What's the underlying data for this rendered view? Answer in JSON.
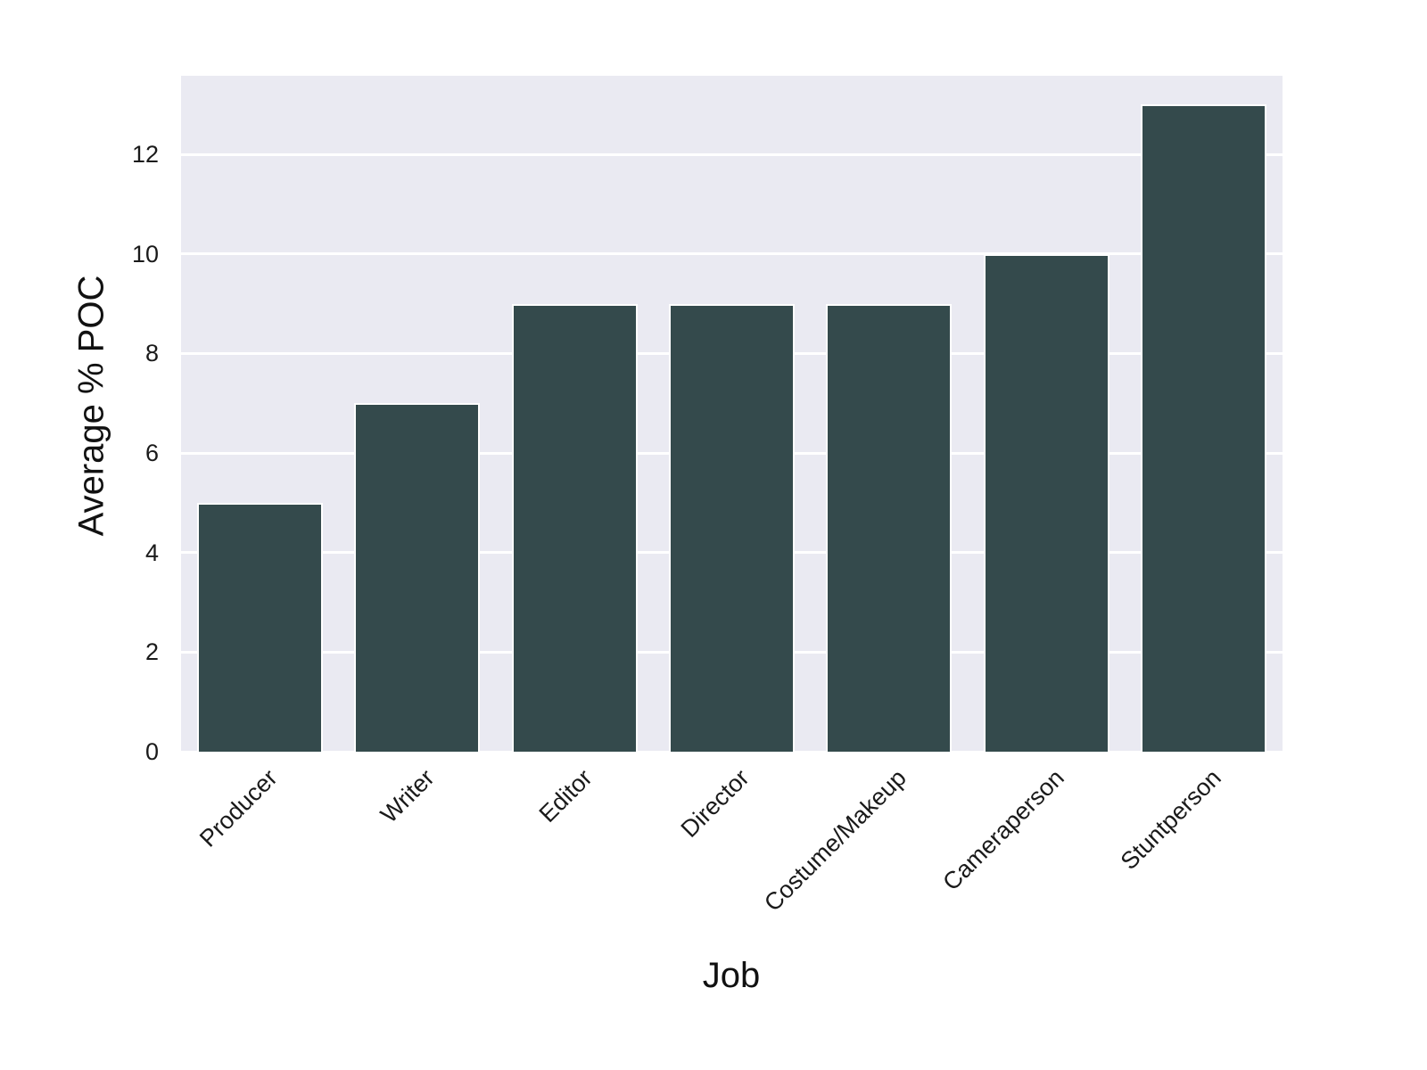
{
  "chart_data": {
    "type": "bar",
    "title": "",
    "xlabel": "Job",
    "ylabel": "Average % POC",
    "categories": [
      "Producer",
      "Writer",
      "Editor",
      "Director",
      "Costume/Makeup",
      "Cameraperson",
      "Stuntperson"
    ],
    "values": [
      5,
      7,
      9,
      9,
      9,
      10,
      13
    ],
    "yticks": [
      0,
      2,
      4,
      6,
      8,
      10,
      12
    ],
    "ylim": [
      0,
      13.58
    ],
    "grid": true,
    "legend": "none",
    "bar_color": "#344A4C",
    "bar_edge_color": "#ffffff",
    "plot_bg_color": "#EAEAF2",
    "grid_color": "#ffffff",
    "text_color": "#1a1a1a"
  }
}
